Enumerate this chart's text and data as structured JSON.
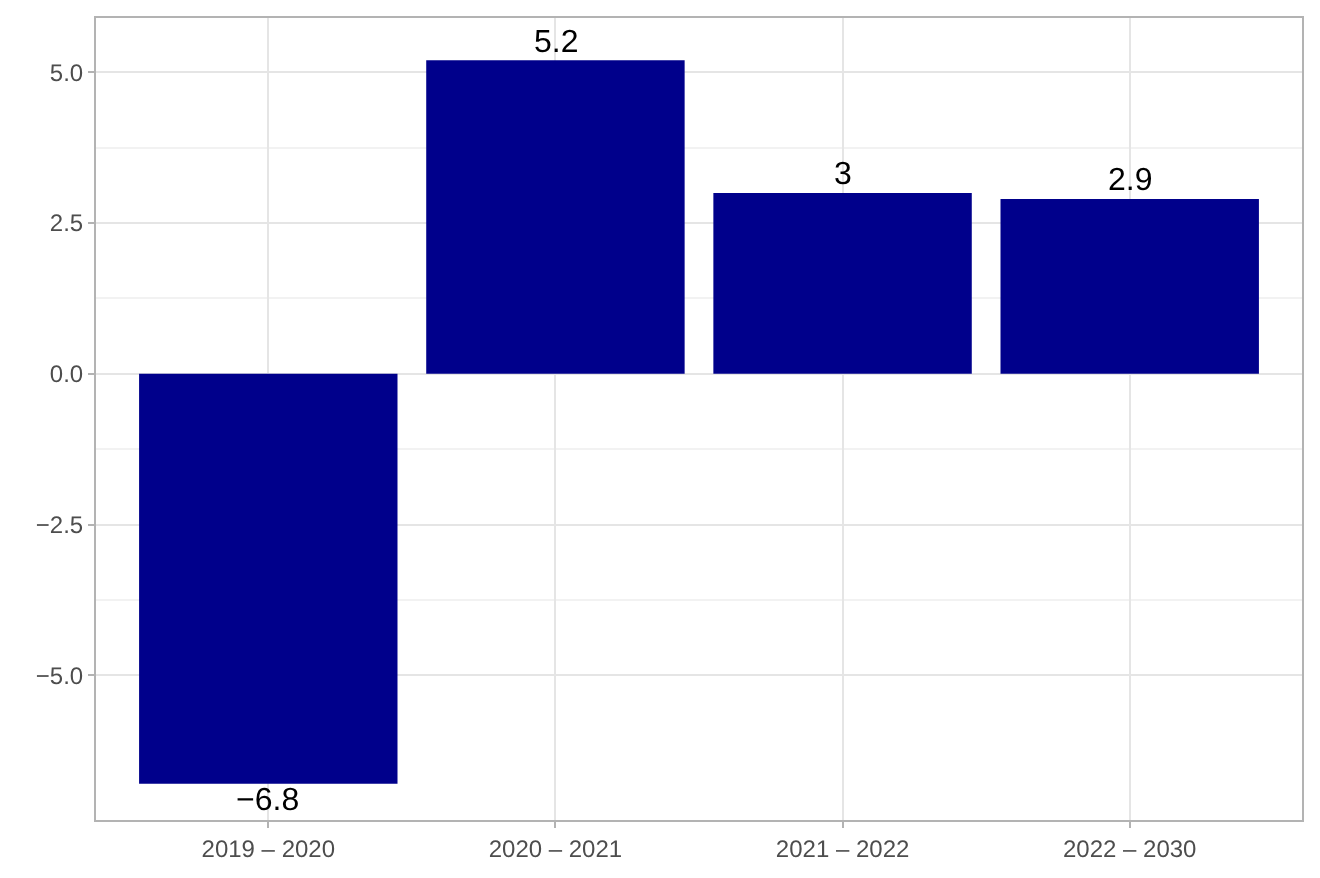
{
  "chart_data": {
    "type": "bar",
    "categories": [
      "2019 – 2020",
      "2020 – 2021",
      "2021 – 2022",
      "2022 – 2030"
    ],
    "values": [
      -6.8,
      5.2,
      3.0,
      2.9
    ],
    "value_labels": [
      "−6.8",
      "5.2",
      "3",
      "2.9"
    ],
    "color": "#00008b",
    "ylim": [
      -7.4,
      5.9
    ],
    "yticks": [
      {
        "value": -5,
        "label": "−5.0"
      },
      {
        "value": -2.5,
        "label": "−2.5"
      },
      {
        "value": 0,
        "label": "0.0"
      },
      {
        "value": 2.5,
        "label": "2.5"
      },
      {
        "value": 5,
        "label": "5.0"
      }
    ],
    "grid": true,
    "legend": false
  }
}
